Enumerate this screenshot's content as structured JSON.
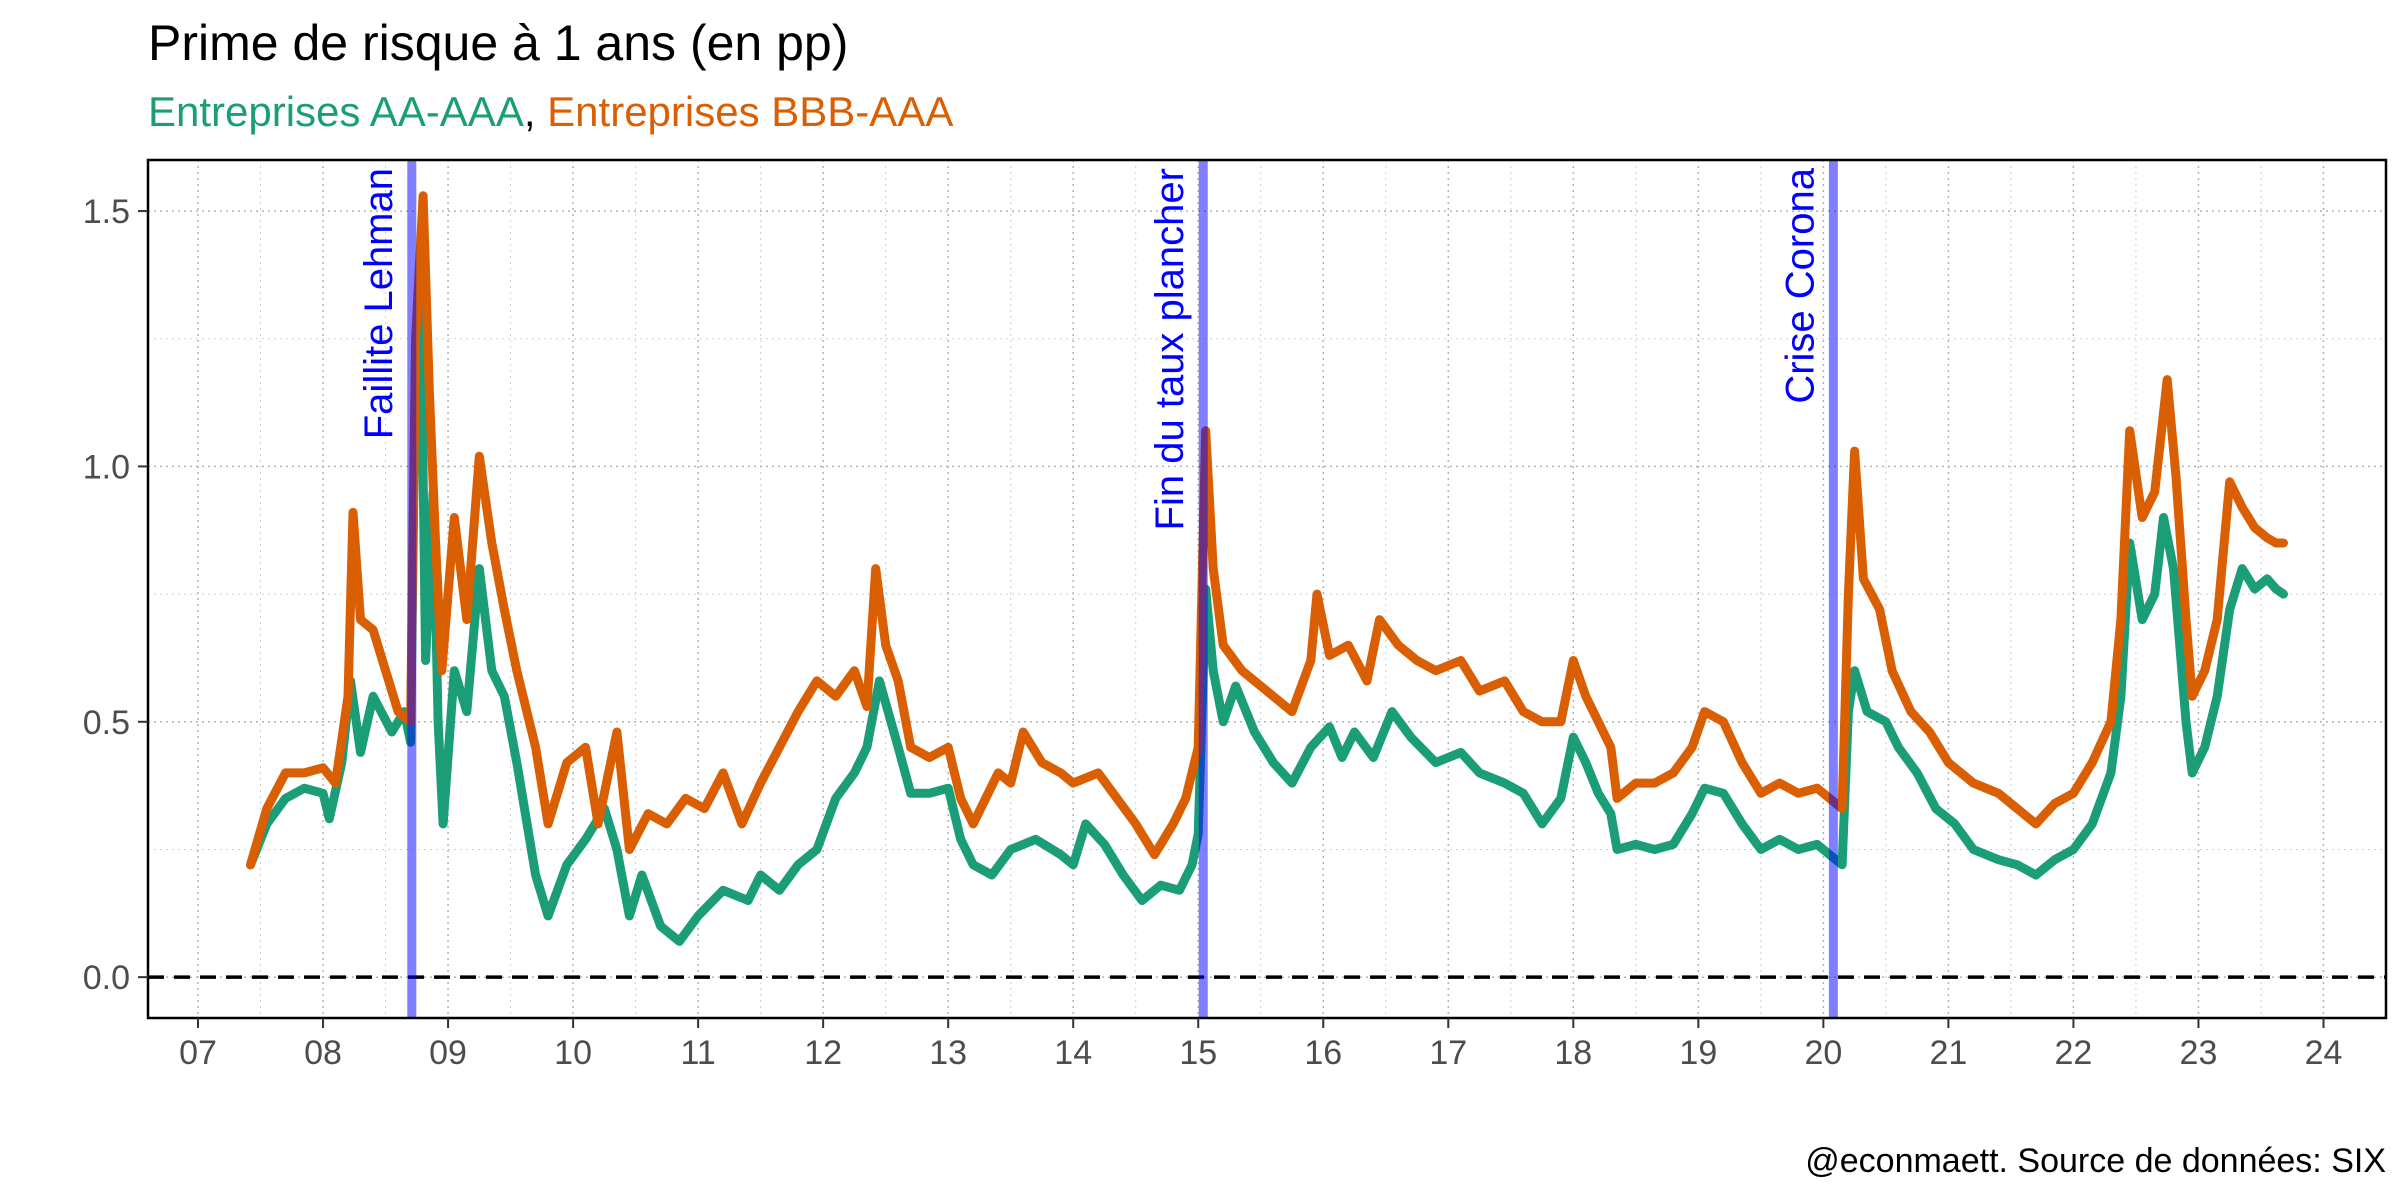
{
  "chart_data": {
    "type": "line",
    "title": "Prime de risque à 1 ans (en pp)",
    "subtitle": {
      "parts": [
        {
          "text": "Entreprises AA-AAA",
          "color": "#1b9e77"
        },
        {
          "text": ", ",
          "color": "#000000"
        },
        {
          "text": "Entreprises BBB-AAA",
          "color": "#d95f02"
        }
      ]
    },
    "caption": "@econmaett. Source de données: SIX",
    "xlim": [
      2006.6,
      2024.5
    ],
    "ylim": [
      -0.08,
      1.6
    ],
    "x_ticks": [
      {
        "value": 2007,
        "label": "07"
      },
      {
        "value": 2008,
        "label": "08"
      },
      {
        "value": 2009,
        "label": "09"
      },
      {
        "value": 2010,
        "label": "10"
      },
      {
        "value": 2011,
        "label": "11"
      },
      {
        "value": 2012,
        "label": "12"
      },
      {
        "value": 2013,
        "label": "13"
      },
      {
        "value": 2014,
        "label": "14"
      },
      {
        "value": 2015,
        "label": "15"
      },
      {
        "value": 2016,
        "label": "16"
      },
      {
        "value": 2017,
        "label": "17"
      },
      {
        "value": 2018,
        "label": "18"
      },
      {
        "value": 2019,
        "label": "19"
      },
      {
        "value": 2020,
        "label": "20"
      },
      {
        "value": 2021,
        "label": "21"
      },
      {
        "value": 2022,
        "label": "22"
      },
      {
        "value": 2023,
        "label": "23"
      },
      {
        "value": 2024,
        "label": "24"
      }
    ],
    "y_ticks": [
      {
        "value": 0,
        "label": "0.0"
      },
      {
        "value": 0.5,
        "label": "0.5"
      },
      {
        "value": 1.0,
        "label": "1.0"
      },
      {
        "value": 1.5,
        "label": "1.5"
      }
    ],
    "grid": true,
    "reference_line": {
      "y": 0,
      "style": "dashed",
      "color": "#000000"
    },
    "events": [
      {
        "x": 2008.71,
        "label": "Faillite Lehman",
        "color": "#0000ff"
      },
      {
        "x": 2015.04,
        "label": "Fin du taux plancher",
        "color": "#0000ff"
      },
      {
        "x": 2020.08,
        "label": "Crise Corona",
        "color": "#0000ff"
      }
    ],
    "series": [
      {
        "name": "Entreprises AA-AAA",
        "color": "#1b9e77",
        "points": [
          [
            2007.42,
            0.22
          ],
          [
            2007.55,
            0.3
          ],
          [
            2007.7,
            0.35
          ],
          [
            2007.85,
            0.37
          ],
          [
            2008.0,
            0.36
          ],
          [
            2008.05,
            0.31
          ],
          [
            2008.15,
            0.42
          ],
          [
            2008.22,
            0.58
          ],
          [
            2008.3,
            0.44
          ],
          [
            2008.4,
            0.55
          ],
          [
            2008.55,
            0.48
          ],
          [
            2008.65,
            0.52
          ],
          [
            2008.7,
            0.46
          ],
          [
            2008.74,
            1.22
          ],
          [
            2008.78,
            1.36
          ],
          [
            2008.82,
            0.62
          ],
          [
            2008.88,
            0.95
          ],
          [
            2008.92,
            0.5
          ],
          [
            2008.96,
            0.3
          ],
          [
            2009.05,
            0.6
          ],
          [
            2009.15,
            0.52
          ],
          [
            2009.25,
            0.8
          ],
          [
            2009.35,
            0.6
          ],
          [
            2009.45,
            0.55
          ],
          [
            2009.55,
            0.42
          ],
          [
            2009.7,
            0.2
          ],
          [
            2009.8,
            0.12
          ],
          [
            2009.95,
            0.22
          ],
          [
            2010.1,
            0.27
          ],
          [
            2010.25,
            0.33
          ],
          [
            2010.35,
            0.25
          ],
          [
            2010.45,
            0.12
          ],
          [
            2010.55,
            0.2
          ],
          [
            2010.7,
            0.1
          ],
          [
            2010.85,
            0.07
          ],
          [
            2011.0,
            0.12
          ],
          [
            2011.2,
            0.17
          ],
          [
            2011.4,
            0.15
          ],
          [
            2011.5,
            0.2
          ],
          [
            2011.65,
            0.17
          ],
          [
            2011.8,
            0.22
          ],
          [
            2011.95,
            0.25
          ],
          [
            2012.1,
            0.35
          ],
          [
            2012.25,
            0.4
          ],
          [
            2012.35,
            0.45
          ],
          [
            2012.45,
            0.58
          ],
          [
            2012.6,
            0.45
          ],
          [
            2012.7,
            0.36
          ],
          [
            2012.85,
            0.36
          ],
          [
            2013.0,
            0.37
          ],
          [
            2013.1,
            0.27
          ],
          [
            2013.2,
            0.22
          ],
          [
            2013.35,
            0.2
          ],
          [
            2013.5,
            0.25
          ],
          [
            2013.7,
            0.27
          ],
          [
            2013.9,
            0.24
          ],
          [
            2014.0,
            0.22
          ],
          [
            2014.1,
            0.3
          ],
          [
            2014.25,
            0.26
          ],
          [
            2014.4,
            0.2
          ],
          [
            2014.55,
            0.15
          ],
          [
            2014.7,
            0.18
          ],
          [
            2014.85,
            0.17
          ],
          [
            2014.95,
            0.22
          ],
          [
            2015.0,
            0.28
          ],
          [
            2015.06,
            0.76
          ],
          [
            2015.12,
            0.6
          ],
          [
            2015.2,
            0.5
          ],
          [
            2015.3,
            0.57
          ],
          [
            2015.45,
            0.48
          ],
          [
            2015.6,
            0.42
          ],
          [
            2015.75,
            0.38
          ],
          [
            2015.9,
            0.45
          ],
          [
            2016.05,
            0.49
          ],
          [
            2016.15,
            0.43
          ],
          [
            2016.25,
            0.48
          ],
          [
            2016.4,
            0.43
          ],
          [
            2016.55,
            0.52
          ],
          [
            2016.7,
            0.47
          ],
          [
            2016.9,
            0.42
          ],
          [
            2017.1,
            0.44
          ],
          [
            2017.25,
            0.4
          ],
          [
            2017.45,
            0.38
          ],
          [
            2017.6,
            0.36
          ],
          [
            2017.75,
            0.3
          ],
          [
            2017.9,
            0.35
          ],
          [
            2018.0,
            0.47
          ],
          [
            2018.1,
            0.42
          ],
          [
            2018.2,
            0.36
          ],
          [
            2018.3,
            0.32
          ],
          [
            2018.35,
            0.25
          ],
          [
            2018.5,
            0.26
          ],
          [
            2018.65,
            0.25
          ],
          [
            2018.8,
            0.26
          ],
          [
            2018.95,
            0.32
          ],
          [
            2019.05,
            0.37
          ],
          [
            2019.2,
            0.36
          ],
          [
            2019.35,
            0.3
          ],
          [
            2019.5,
            0.25
          ],
          [
            2019.65,
            0.27
          ],
          [
            2019.8,
            0.25
          ],
          [
            2019.95,
            0.26
          ],
          [
            2020.05,
            0.24
          ],
          [
            2020.15,
            0.22
          ],
          [
            2020.2,
            0.52
          ],
          [
            2020.25,
            0.6
          ],
          [
            2020.35,
            0.52
          ],
          [
            2020.5,
            0.5
          ],
          [
            2020.6,
            0.45
          ],
          [
            2020.75,
            0.4
          ],
          [
            2020.9,
            0.33
          ],
          [
            2021.05,
            0.3
          ],
          [
            2021.2,
            0.25
          ],
          [
            2021.4,
            0.23
          ],
          [
            2021.55,
            0.22
          ],
          [
            2021.7,
            0.2
          ],
          [
            2021.85,
            0.23
          ],
          [
            2022.0,
            0.25
          ],
          [
            2022.15,
            0.3
          ],
          [
            2022.3,
            0.4
          ],
          [
            2022.38,
            0.55
          ],
          [
            2022.45,
            0.85
          ],
          [
            2022.55,
            0.7
          ],
          [
            2022.65,
            0.75
          ],
          [
            2022.72,
            0.9
          ],
          [
            2022.8,
            0.8
          ],
          [
            2022.9,
            0.5
          ],
          [
            2022.95,
            0.4
          ],
          [
            2023.05,
            0.45
          ],
          [
            2023.15,
            0.55
          ],
          [
            2023.25,
            0.72
          ],
          [
            2023.35,
            0.8
          ],
          [
            2023.45,
            0.76
          ],
          [
            2023.55,
            0.78
          ],
          [
            2023.62,
            0.76
          ],
          [
            2023.68,
            0.75
          ]
        ]
      },
      {
        "name": "Entreprises BBB-AAA",
        "color": "#d95f02",
        "points": [
          [
            2007.42,
            0.22
          ],
          [
            2007.55,
            0.33
          ],
          [
            2007.7,
            0.4
          ],
          [
            2007.85,
            0.4
          ],
          [
            2008.0,
            0.41
          ],
          [
            2008.1,
            0.38
          ],
          [
            2008.2,
            0.55
          ],
          [
            2008.24,
            0.91
          ],
          [
            2008.3,
            0.7
          ],
          [
            2008.4,
            0.68
          ],
          [
            2008.5,
            0.6
          ],
          [
            2008.6,
            0.52
          ],
          [
            2008.7,
            0.5
          ],
          [
            2008.74,
            1.25
          ],
          [
            2008.8,
            1.53
          ],
          [
            2008.85,
            1.15
          ],
          [
            2008.9,
            0.85
          ],
          [
            2008.95,
            0.6
          ],
          [
            2009.05,
            0.9
          ],
          [
            2009.15,
            0.7
          ],
          [
            2009.25,
            1.02
          ],
          [
            2009.35,
            0.85
          ],
          [
            2009.45,
            0.72
          ],
          [
            2009.55,
            0.6
          ],
          [
            2009.7,
            0.45
          ],
          [
            2009.8,
            0.3
          ],
          [
            2009.95,
            0.42
          ],
          [
            2010.1,
            0.45
          ],
          [
            2010.2,
            0.3
          ],
          [
            2010.35,
            0.48
          ],
          [
            2010.45,
            0.25
          ],
          [
            2010.6,
            0.32
          ],
          [
            2010.75,
            0.3
          ],
          [
            2010.9,
            0.35
          ],
          [
            2011.05,
            0.33
          ],
          [
            2011.2,
            0.4
          ],
          [
            2011.35,
            0.3
          ],
          [
            2011.5,
            0.38
          ],
          [
            2011.65,
            0.45
          ],
          [
            2011.8,
            0.52
          ],
          [
            2011.95,
            0.58
          ],
          [
            2012.1,
            0.55
          ],
          [
            2012.25,
            0.6
          ],
          [
            2012.35,
            0.53
          ],
          [
            2012.42,
            0.8
          ],
          [
            2012.5,
            0.65
          ],
          [
            2012.6,
            0.58
          ],
          [
            2012.7,
            0.45
          ],
          [
            2012.85,
            0.43
          ],
          [
            2013.0,
            0.45
          ],
          [
            2013.1,
            0.35
          ],
          [
            2013.2,
            0.3
          ],
          [
            2013.4,
            0.4
          ],
          [
            2013.5,
            0.38
          ],
          [
            2013.6,
            0.48
          ],
          [
            2013.75,
            0.42
          ],
          [
            2013.9,
            0.4
          ],
          [
            2014.0,
            0.38
          ],
          [
            2014.2,
            0.4
          ],
          [
            2014.35,
            0.35
          ],
          [
            2014.5,
            0.3
          ],
          [
            2014.65,
            0.24
          ],
          [
            2014.8,
            0.3
          ],
          [
            2014.9,
            0.35
          ],
          [
            2015.0,
            0.45
          ],
          [
            2015.06,
            1.07
          ],
          [
            2015.12,
            0.8
          ],
          [
            2015.2,
            0.65
          ],
          [
            2015.35,
            0.6
          ],
          [
            2015.45,
            0.58
          ],
          [
            2015.6,
            0.55
          ],
          [
            2015.75,
            0.52
          ],
          [
            2015.9,
            0.62
          ],
          [
            2015.95,
            0.75
          ],
          [
            2016.05,
            0.63
          ],
          [
            2016.2,
            0.65
          ],
          [
            2016.35,
            0.58
          ],
          [
            2016.45,
            0.7
          ],
          [
            2016.6,
            0.65
          ],
          [
            2016.75,
            0.62
          ],
          [
            2016.9,
            0.6
          ],
          [
            2017.1,
            0.62
          ],
          [
            2017.25,
            0.56
          ],
          [
            2017.45,
            0.58
          ],
          [
            2017.6,
            0.52
          ],
          [
            2017.75,
            0.5
          ],
          [
            2017.9,
            0.5
          ],
          [
            2018.0,
            0.62
          ],
          [
            2018.1,
            0.55
          ],
          [
            2018.2,
            0.5
          ],
          [
            2018.3,
            0.45
          ],
          [
            2018.35,
            0.35
          ],
          [
            2018.5,
            0.38
          ],
          [
            2018.65,
            0.38
          ],
          [
            2018.8,
            0.4
          ],
          [
            2018.95,
            0.45
          ],
          [
            2019.05,
            0.52
          ],
          [
            2019.2,
            0.5
          ],
          [
            2019.35,
            0.42
          ],
          [
            2019.5,
            0.36
          ],
          [
            2019.65,
            0.38
          ],
          [
            2019.8,
            0.36
          ],
          [
            2019.95,
            0.37
          ],
          [
            2020.05,
            0.35
          ],
          [
            2020.15,
            0.33
          ],
          [
            2020.2,
            0.75
          ],
          [
            2020.25,
            1.03
          ],
          [
            2020.32,
            0.78
          ],
          [
            2020.45,
            0.72
          ],
          [
            2020.55,
            0.6
          ],
          [
            2020.7,
            0.52
          ],
          [
            2020.85,
            0.48
          ],
          [
            2021.0,
            0.42
          ],
          [
            2021.2,
            0.38
          ],
          [
            2021.4,
            0.36
          ],
          [
            2021.55,
            0.33
          ],
          [
            2021.7,
            0.3
          ],
          [
            2021.85,
            0.34
          ],
          [
            2022.0,
            0.36
          ],
          [
            2022.15,
            0.42
          ],
          [
            2022.3,
            0.5
          ],
          [
            2022.38,
            0.7
          ],
          [
            2022.45,
            1.07
          ],
          [
            2022.55,
            0.9
          ],
          [
            2022.65,
            0.95
          ],
          [
            2022.75,
            1.17
          ],
          [
            2022.82,
            0.98
          ],
          [
            2022.9,
            0.7
          ],
          [
            2022.95,
            0.55
          ],
          [
            2023.05,
            0.6
          ],
          [
            2023.15,
            0.7
          ],
          [
            2023.25,
            0.97
          ],
          [
            2023.35,
            0.92
          ],
          [
            2023.45,
            0.88
          ],
          [
            2023.55,
            0.86
          ],
          [
            2023.62,
            0.85
          ],
          [
            2023.68,
            0.85
          ]
        ]
      }
    ]
  }
}
